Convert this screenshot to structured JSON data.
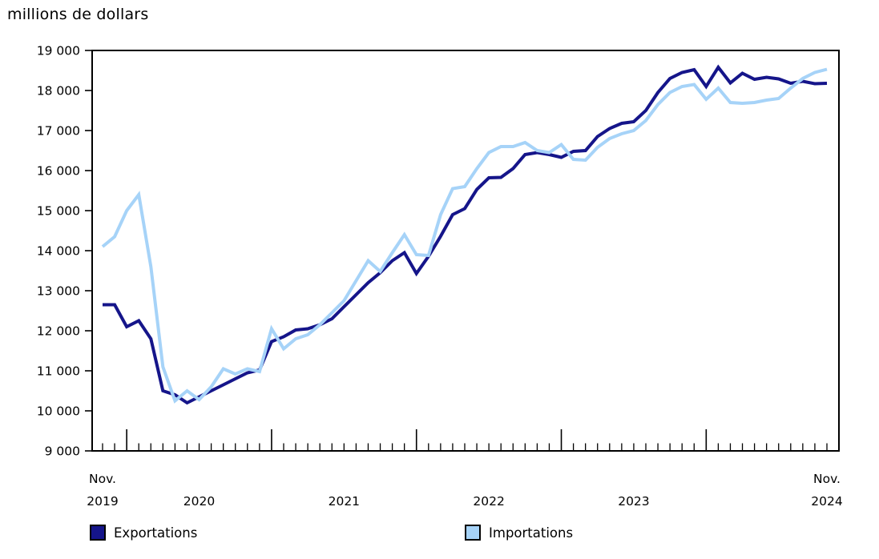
{
  "chart": {
    "title": "millions de dollars",
    "colors": {
      "exportations": "#15158a",
      "importations": "#a6d3f8",
      "axis": "#000000",
      "background": "#ffffff"
    }
  },
  "legend": {
    "items": [
      {
        "id": "exportations",
        "label": "Exportations",
        "color": "#15158a"
      },
      {
        "id": "importations",
        "label": "Importations",
        "color": "#a6d3f8"
      }
    ]
  },
  "chart_data": {
    "type": "line",
    "title": "millions de dollars",
    "ylabel": "millions de dollars",
    "ylim": [
      9000,
      19000
    ],
    "ytick_step": 1000,
    "grid": false,
    "legend_position": "bottom",
    "x_range": [
      "Nov. 2019",
      "Nov. 2024"
    ],
    "x_months": [
      "2019-11",
      "2019-12",
      "2020-01",
      "2020-02",
      "2020-03",
      "2020-04",
      "2020-05",
      "2020-06",
      "2020-07",
      "2020-08",
      "2020-09",
      "2020-10",
      "2020-11",
      "2020-12",
      "2021-01",
      "2021-02",
      "2021-03",
      "2021-04",
      "2021-05",
      "2021-06",
      "2021-07",
      "2021-08",
      "2021-09",
      "2021-10",
      "2021-11",
      "2021-12",
      "2022-01",
      "2022-02",
      "2022-03",
      "2022-04",
      "2022-05",
      "2022-06",
      "2022-07",
      "2022-08",
      "2022-09",
      "2022-10",
      "2022-11",
      "2022-12",
      "2023-01",
      "2023-02",
      "2023-03",
      "2023-04",
      "2023-05",
      "2023-06",
      "2023-07",
      "2023-08",
      "2023-09",
      "2023-10",
      "2023-11",
      "2023-12",
      "2024-01",
      "2024-02",
      "2024-03",
      "2024-04",
      "2024-05",
      "2024-06",
      "2024-07",
      "2024-08",
      "2024-09",
      "2024-10",
      "2024-11"
    ],
    "xticklabels": [
      {
        "lines": [
          "Nov.",
          "2019"
        ],
        "month_index": 0
      },
      {
        "lines": [
          "2020"
        ],
        "month_index": 8
      },
      {
        "lines": [
          "2021"
        ],
        "month_index": 20
      },
      {
        "lines": [
          "2022"
        ],
        "month_index": 32
      },
      {
        "lines": [
          "2023"
        ],
        "month_index": 44
      },
      {
        "lines": [
          "Nov.",
          "2024"
        ],
        "month_index": 60
      }
    ],
    "series": [
      {
        "name": "Exportations",
        "color": "#15158a",
        "values": [
          12650,
          12650,
          12100,
          12250,
          11800,
          10500,
          10400,
          10200,
          10350,
          10500,
          10650,
          10800,
          10950,
          11020,
          11730,
          11850,
          12020,
          12050,
          12150,
          12300,
          12600,
          12900,
          13200,
          13450,
          13750,
          13950,
          13430,
          13860,
          14360,
          14900,
          15050,
          15530,
          15820,
          15830,
          16050,
          16400,
          16450,
          16400,
          16330,
          16480,
          16500,
          16850,
          17050,
          17180,
          17220,
          17500,
          17950,
          18300,
          18450,
          18520,
          18100,
          18580,
          18190,
          18430,
          18280,
          18330,
          18290,
          18180,
          18230,
          18170,
          18180
        ]
      },
      {
        "name": "Importations",
        "color": "#a6d3f8",
        "values": [
          14100,
          14350,
          15000,
          15400,
          13600,
          11100,
          10250,
          10500,
          10280,
          10600,
          11050,
          10920,
          11050,
          10980,
          12050,
          11550,
          11800,
          11900,
          12150,
          12450,
          12750,
          13250,
          13750,
          13480,
          13950,
          14400,
          13900,
          13880,
          14900,
          15550,
          15600,
          16050,
          16450,
          16600,
          16600,
          16700,
          16500,
          16450,
          16650,
          16280,
          16260,
          16580,
          16800,
          16920,
          17000,
          17250,
          17650,
          17950,
          18100,
          18150,
          17780,
          18060,
          17700,
          17680,
          17700,
          17760,
          17800,
          18060,
          18300,
          18450,
          18530
        ]
      }
    ]
  }
}
